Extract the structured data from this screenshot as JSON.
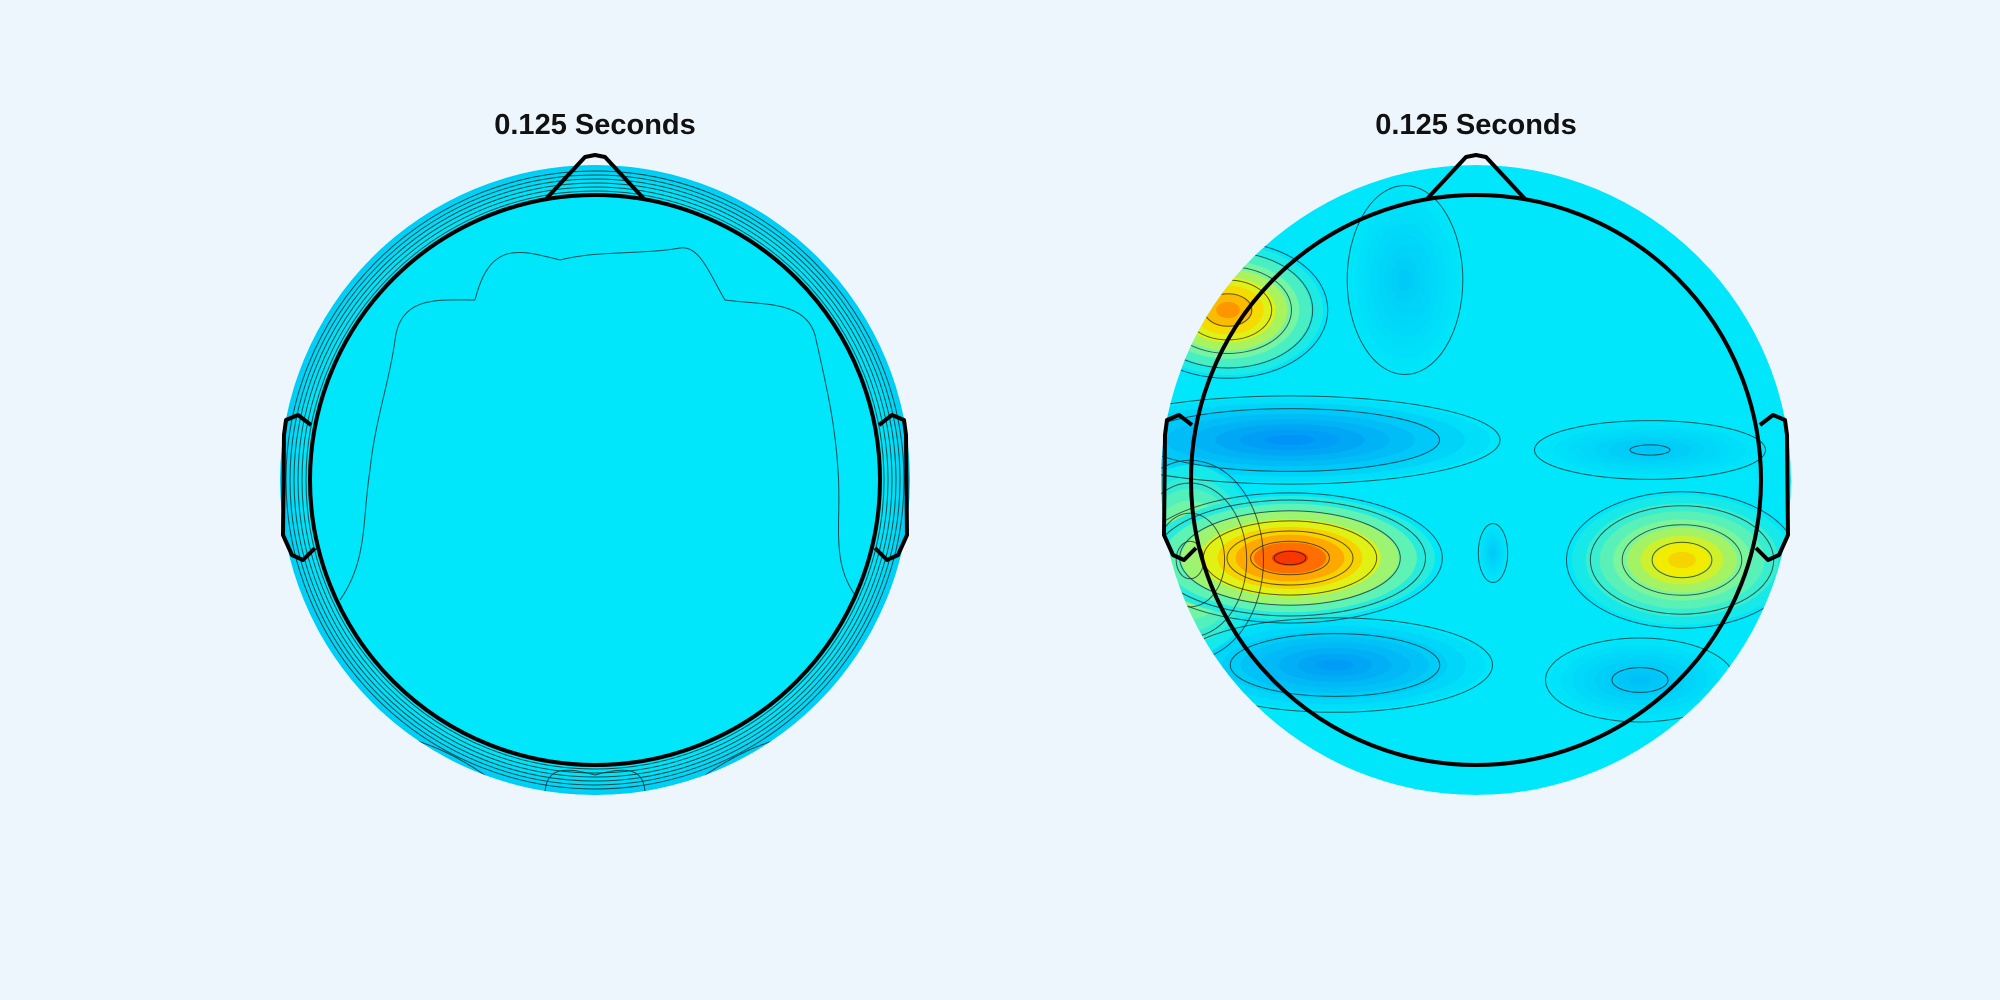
{
  "figure": {
    "background": "#eef6fd"
  },
  "chart_data": [
    {
      "type": "heatmap",
      "variant": "scalp-topography",
      "title": "0.125 Seconds",
      "colormap": "jet",
      "background_level_color": "#00e6fa",
      "sources": [],
      "contour_rings": 7
    },
    {
      "type": "heatmap",
      "variant": "scalp-topography",
      "title": "0.125 Seconds",
      "colormap": "jet",
      "background_level_color": "#00e6fa",
      "sources": [
        {
          "name": "left-frontal-positive",
          "value": 0.78
        },
        {
          "name": "left-central-negative",
          "value": -0.32
        },
        {
          "name": "left-temporal-positive",
          "value": 1.0
        },
        {
          "name": "left-lower-temporal-positive",
          "value": 0.55
        },
        {
          "name": "left-occipital-negative",
          "value": -0.28
        },
        {
          "name": "right-temporal-positive",
          "value": 0.6
        },
        {
          "name": "right-central-negative",
          "value": -0.12
        },
        {
          "name": "right-occipital-negative",
          "value": -0.14
        },
        {
          "name": "frontal-midline-negative",
          "value": -0.1
        },
        {
          "name": "center-small-negative",
          "value": -0.1
        }
      ],
      "contour_levels": [
        -0.1,
        0.14,
        0.3,
        0.45,
        0.6,
        0.75,
        0.9
      ]
    }
  ]
}
